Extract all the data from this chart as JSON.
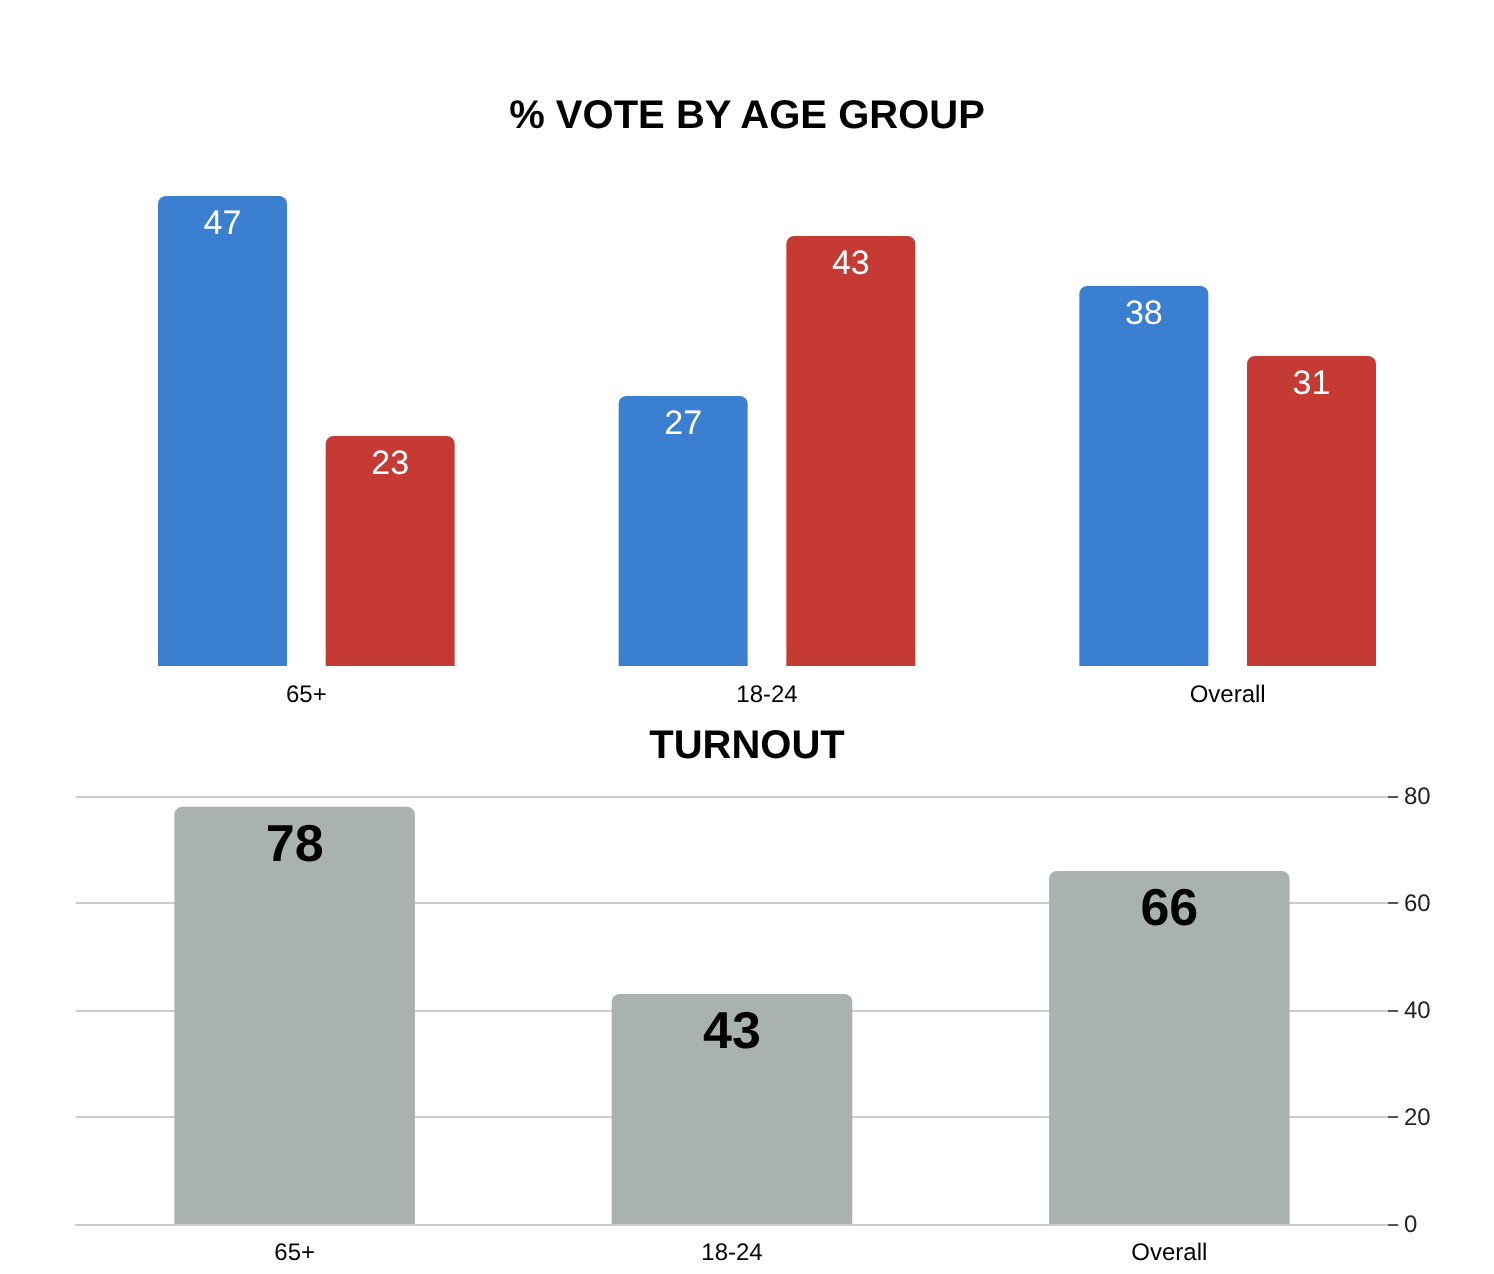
{
  "chart_data": [
    {
      "type": "bar",
      "title": "% VOTE BY AGE GROUP",
      "categories": [
        "65+",
        "18-24",
        "Overall"
      ],
      "series": [
        {
          "color": "#3a7fd0",
          "values": [
            47,
            27,
            38
          ]
        },
        {
          "color": "#c63a34",
          "values": [
            23,
            43,
            31
          ]
        }
      ],
      "data_labels": true
    },
    {
      "type": "bar",
      "title": "TURNOUT",
      "categories": [
        "65+",
        "18-24",
        "Overall"
      ],
      "series": [
        {
          "color": "#a9b2af",
          "values": [
            78,
            43,
            66
          ]
        }
      ],
      "ylim": [
        0,
        80
      ],
      "yticks": [
        0,
        20,
        40,
        60,
        80
      ],
      "grid": "y",
      "data_labels": true
    }
  ]
}
